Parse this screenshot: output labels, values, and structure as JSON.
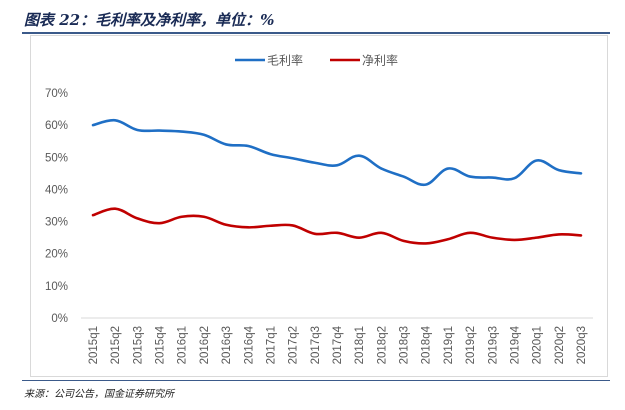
{
  "title": "图表 22：毛利率及净利率，单位：%",
  "source": "来源：公司公告，国金证券研究所",
  "chart_data": {
    "type": "line",
    "categories": [
      "2015q1",
      "2015q2",
      "2015q3",
      "2015q4",
      "2016q1",
      "2016q2",
      "2016q3",
      "2016q4",
      "2017q1",
      "2017q2",
      "2017q3",
      "2017q4",
      "2018q1",
      "2018q2",
      "2018q3",
      "2018q4",
      "2019q1",
      "2019q2",
      "2019q3",
      "2019q4",
      "2020q1",
      "2020q2",
      "2020q3"
    ],
    "series": [
      {
        "name": "毛利率",
        "color": "#1f6fc5",
        "values": [
          60,
          61.5,
          58.5,
          58.3,
          58,
          57,
          54,
          53.5,
          51,
          49.7,
          48.3,
          47.5,
          50.5,
          46.5,
          44,
          41.5,
          46.5,
          44,
          43.7,
          43.5,
          49,
          46,
          45
        ]
      },
      {
        "name": "净利率",
        "color": "#c00000",
        "values": [
          32,
          34,
          31,
          29.5,
          31.5,
          31.5,
          29,
          28.2,
          28.7,
          28.8,
          26.2,
          26.5,
          25,
          26.5,
          24,
          23.2,
          24.5,
          26.5,
          25,
          24.3,
          25,
          26,
          25.7
        ]
      }
    ],
    "ylim": [
      0,
      70
    ],
    "yticks": [
      "0%",
      "10%",
      "20%",
      "30%",
      "40%",
      "50%",
      "60%",
      "70%"
    ],
    "legend": "top-center",
    "grid": false
  }
}
